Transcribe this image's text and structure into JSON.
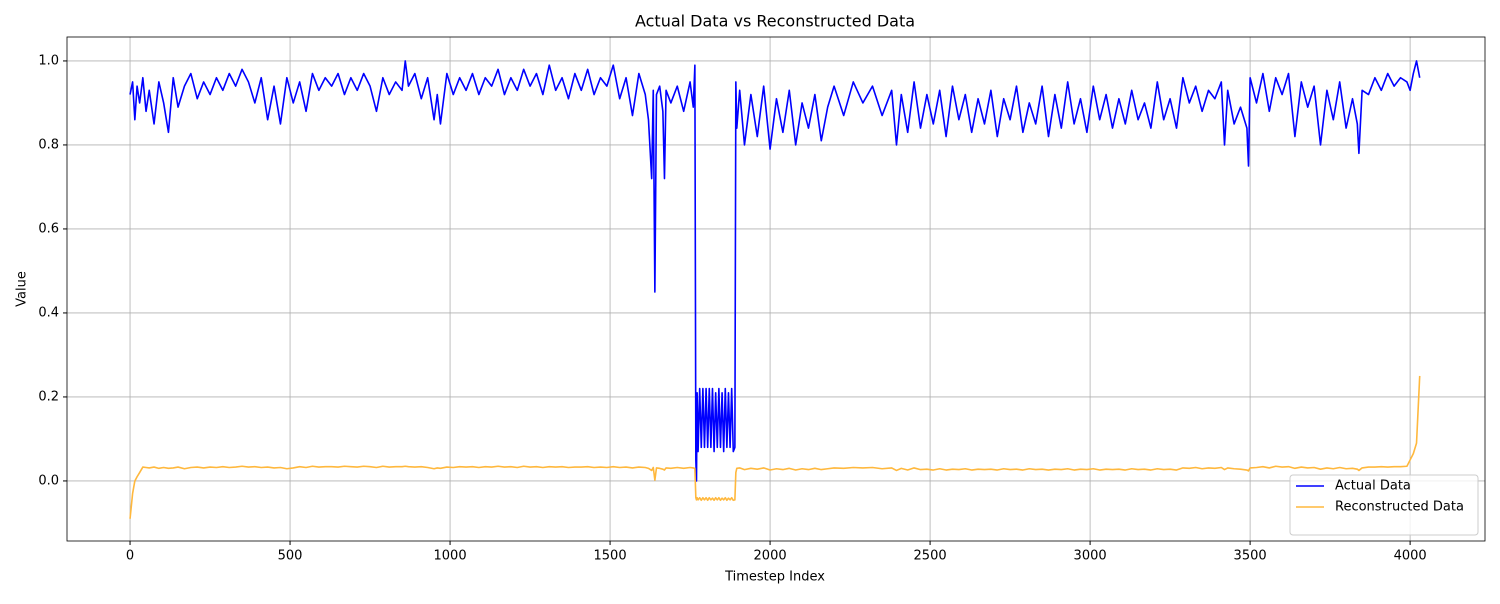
{
  "chart_data": {
    "type": "line",
    "title": "Actual Data vs Reconstructed Data",
    "x_label": "Timestep Index",
    "y_label": "Value",
    "x": [
      0,
      8,
      15,
      22,
      30,
      40,
      50,
      60,
      75,
      90,
      105,
      120,
      135,
      150,
      170,
      190,
      210,
      230,
      250,
      270,
      290,
      310,
      330,
      350,
      370,
      390,
      410,
      430,
      450,
      470,
      490,
      510,
      530,
      550,
      570,
      590,
      610,
      630,
      650,
      670,
      690,
      710,
      730,
      750,
      770,
      790,
      810,
      830,
      850,
      860,
      870,
      890,
      910,
      930,
      950,
      960,
      970,
      990,
      1010,
      1030,
      1050,
      1070,
      1090,
      1110,
      1130,
      1150,
      1170,
      1190,
      1210,
      1230,
      1250,
      1270,
      1290,
      1310,
      1330,
      1350,
      1370,
      1390,
      1410,
      1430,
      1450,
      1470,
      1490,
      1510,
      1530,
      1550,
      1570,
      1590,
      1610,
      1620,
      1630,
      1635,
      1640,
      1645,
      1655,
      1665,
      1670,
      1675,
      1690,
      1710,
      1730,
      1750,
      1760,
      1765,
      1768,
      1770,
      1772,
      1775,
      1780,
      1785,
      1790,
      1795,
      1800,
      1805,
      1810,
      1815,
      1820,
      1825,
      1830,
      1835,
      1840,
      1845,
      1850,
      1855,
      1860,
      1865,
      1870,
      1875,
      1880,
      1885,
      1890,
      1893,
      1896,
      1905,
      1920,
      1940,
      1960,
      1980,
      2000,
      2020,
      2040,
      2060,
      2080,
      2100,
      2120,
      2140,
      2160,
      2180,
      2200,
      2230,
      2260,
      2290,
      2320,
      2350,
      2380,
      2395,
      2410,
      2430,
      2450,
      2470,
      2490,
      2510,
      2530,
      2550,
      2570,
      2590,
      2610,
      2630,
      2650,
      2670,
      2690,
      2710,
      2730,
      2750,
      2770,
      2790,
      2810,
      2830,
      2850,
      2870,
      2890,
      2910,
      2930,
      2950,
      2970,
      2990,
      3010,
      3030,
      3050,
      3070,
      3090,
      3110,
      3130,
      3150,
      3170,
      3190,
      3210,
      3230,
      3250,
      3270,
      3290,
      3310,
      3330,
      3350,
      3370,
      3390,
      3410,
      3420,
      3430,
      3450,
      3470,
      3490,
      3495,
      3500,
      3520,
      3540,
      3560,
      3580,
      3600,
      3620,
      3640,
      3660,
      3680,
      3700,
      3720,
      3740,
      3760,
      3780,
      3800,
      3820,
      3835,
      3840,
      3850,
      3870,
      3890,
      3910,
      3930,
      3950,
      3970,
      3990,
      4000,
      4010,
      4020,
      4030
    ],
    "series": [
      {
        "name": "Actual Data",
        "color": "#0000ff",
        "values": [
          0.92,
          0.95,
          0.86,
          0.94,
          0.9,
          0.96,
          0.88,
          0.93,
          0.85,
          0.95,
          0.9,
          0.83,
          0.96,
          0.89,
          0.94,
          0.97,
          0.91,
          0.95,
          0.92,
          0.96,
          0.93,
          0.97,
          0.94,
          0.98,
          0.95,
          0.9,
          0.96,
          0.86,
          0.94,
          0.85,
          0.96,
          0.9,
          0.95,
          0.88,
          0.97,
          0.93,
          0.96,
          0.94,
          0.97,
          0.92,
          0.96,
          0.93,
          0.97,
          0.94,
          0.88,
          0.96,
          0.92,
          0.95,
          0.93,
          1.0,
          0.94,
          0.97,
          0.91,
          0.96,
          0.86,
          0.92,
          0.85,
          0.97,
          0.92,
          0.96,
          0.93,
          0.97,
          0.92,
          0.96,
          0.94,
          0.98,
          0.92,
          0.96,
          0.93,
          0.98,
          0.94,
          0.97,
          0.92,
          0.99,
          0.93,
          0.96,
          0.91,
          0.97,
          0.93,
          0.98,
          0.92,
          0.96,
          0.94,
          0.99,
          0.91,
          0.96,
          0.87,
          0.97,
          0.92,
          0.86,
          0.72,
          0.93,
          0.45,
          0.92,
          0.94,
          0.88,
          0.72,
          0.93,
          0.9,
          0.94,
          0.88,
          0.95,
          0.89,
          0.99,
          0.05,
          0.0,
          0.21,
          0.07,
          0.22,
          0.08,
          0.22,
          0.08,
          0.22,
          0.08,
          0.22,
          0.08,
          0.22,
          0.07,
          0.21,
          0.08,
          0.22,
          0.08,
          0.21,
          0.07,
          0.22,
          0.08,
          0.21,
          0.08,
          0.22,
          0.07,
          0.08,
          0.95,
          0.84,
          0.93,
          0.8,
          0.92,
          0.82,
          0.94,
          0.79,
          0.91,
          0.83,
          0.93,
          0.8,
          0.9,
          0.84,
          0.92,
          0.81,
          0.89,
          0.94,
          0.87,
          0.95,
          0.9,
          0.94,
          0.87,
          0.93,
          0.8,
          0.92,
          0.83,
          0.95,
          0.84,
          0.92,
          0.85,
          0.93,
          0.82,
          0.94,
          0.86,
          0.92,
          0.83,
          0.91,
          0.85,
          0.93,
          0.82,
          0.91,
          0.86,
          0.94,
          0.83,
          0.9,
          0.85,
          0.94,
          0.82,
          0.92,
          0.84,
          0.95,
          0.85,
          0.91,
          0.83,
          0.94,
          0.86,
          0.92,
          0.84,
          0.91,
          0.85,
          0.93,
          0.86,
          0.9,
          0.84,
          0.95,
          0.86,
          0.91,
          0.84,
          0.96,
          0.9,
          0.94,
          0.88,
          0.93,
          0.91,
          0.95,
          0.8,
          0.93,
          0.85,
          0.89,
          0.84,
          0.75,
          0.96,
          0.9,
          0.97,
          0.88,
          0.96,
          0.92,
          0.97,
          0.82,
          0.95,
          0.89,
          0.94,
          0.8,
          0.93,
          0.86,
          0.95,
          0.84,
          0.91,
          0.85,
          0.78,
          0.93,
          0.92,
          0.96,
          0.93,
          0.97,
          0.94,
          0.96,
          0.95,
          0.93,
          0.97,
          1.0,
          0.96
        ]
      },
      {
        "name": "Reconstructed Data",
        "color": "#ffb83d",
        "values": [
          -0.09,
          -0.03,
          0.0,
          0.01,
          0.02,
          0.033,
          0.032,
          0.031,
          0.033,
          0.03,
          0.032,
          0.03,
          0.031,
          0.033,
          0.029,
          0.032,
          0.033,
          0.031,
          0.033,
          0.032,
          0.034,
          0.032,
          0.033,
          0.035,
          0.033,
          0.034,
          0.032,
          0.033,
          0.031,
          0.032,
          0.029,
          0.031,
          0.034,
          0.032,
          0.035,
          0.033,
          0.034,
          0.034,
          0.033,
          0.035,
          0.034,
          0.033,
          0.035,
          0.034,
          0.032,
          0.035,
          0.033,
          0.034,
          0.034,
          0.035,
          0.034,
          0.033,
          0.034,
          0.032,
          0.029,
          0.031,
          0.03,
          0.033,
          0.032,
          0.034,
          0.033,
          0.034,
          0.032,
          0.034,
          0.033,
          0.035,
          0.033,
          0.034,
          0.032,
          0.035,
          0.033,
          0.034,
          0.032,
          0.034,
          0.033,
          0.034,
          0.032,
          0.033,
          0.033,
          0.034,
          0.032,
          0.033,
          0.032,
          0.034,
          0.032,
          0.033,
          0.031,
          0.033,
          0.032,
          0.03,
          0.025,
          0.032,
          0.002,
          0.031,
          0.03,
          0.028,
          0.026,
          0.031,
          0.03,
          0.032,
          0.03,
          0.032,
          0.031,
          0.03,
          -0.04,
          -0.045,
          -0.04,
          -0.045,
          -0.04,
          -0.046,
          -0.04,
          -0.045,
          -0.04,
          -0.046,
          -0.04,
          -0.045,
          -0.041,
          -0.046,
          -0.04,
          -0.045,
          -0.04,
          -0.046,
          -0.041,
          -0.045,
          -0.04,
          -0.046,
          -0.041,
          -0.045,
          -0.04,
          -0.046,
          -0.045,
          0.02,
          0.03,
          0.031,
          0.027,
          0.03,
          0.028,
          0.031,
          0.026,
          0.029,
          0.027,
          0.03,
          0.026,
          0.029,
          0.027,
          0.03,
          0.027,
          0.029,
          0.031,
          0.03,
          0.032,
          0.031,
          0.032,
          0.029,
          0.031,
          0.025,
          0.03,
          0.026,
          0.031,
          0.027,
          0.028,
          0.026,
          0.029,
          0.026,
          0.028,
          0.027,
          0.029,
          0.026,
          0.028,
          0.027,
          0.028,
          0.026,
          0.029,
          0.027,
          0.028,
          0.026,
          0.029,
          0.027,
          0.028,
          0.026,
          0.028,
          0.027,
          0.029,
          0.026,
          0.028,
          0.027,
          0.029,
          0.026,
          0.028,
          0.027,
          0.028,
          0.026,
          0.029,
          0.027,
          0.028,
          0.026,
          0.029,
          0.027,
          0.028,
          0.026,
          0.031,
          0.03,
          0.032,
          0.029,
          0.031,
          0.03,
          0.032,
          0.027,
          0.031,
          0.029,
          0.028,
          0.026,
          0.024,
          0.031,
          0.032,
          0.034,
          0.031,
          0.035,
          0.033,
          0.034,
          0.03,
          0.033,
          0.031,
          0.032,
          0.028,
          0.031,
          0.029,
          0.032,
          0.029,
          0.03,
          0.028,
          0.025,
          0.031,
          0.033,
          0.033,
          0.034,
          0.033,
          0.034,
          0.034,
          0.035,
          0.05,
          0.065,
          0.09,
          0.25
        ]
      }
    ],
    "xlim": [
      -197,
      4234
    ],
    "ylim": [
      -0.143,
      1.057
    ],
    "xticks": [
      0,
      500,
      1000,
      1500,
      2000,
      2500,
      3000,
      3500,
      4000
    ],
    "yticks": [
      {
        "value": 0,
        "label": "0.0"
      },
      0.2,
      0.4,
      0.6,
      0.8,
      {
        "value": 1,
        "label": "1.0"
      }
    ],
    "grid": true,
    "legend": "lower right"
  }
}
